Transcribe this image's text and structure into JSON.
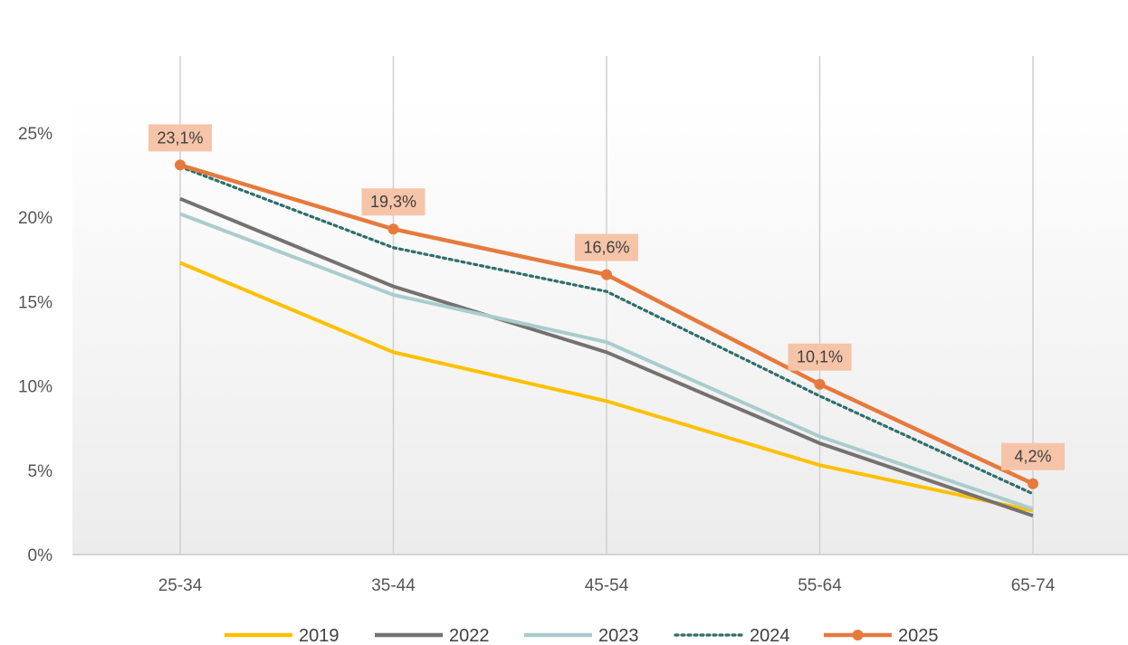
{
  "chart_data": {
    "type": "line",
    "title": "",
    "xlabel": "",
    "ylabel": "",
    "categories": [
      "25-34",
      "35-44",
      "45-54",
      "55-64",
      "65-74"
    ],
    "y_ticks": [
      "0%",
      "5%",
      "10%",
      "15%",
      "20%",
      "25%"
    ],
    "ylim": [
      0,
      25
    ],
    "grid": "vertical lines at categories",
    "legend_position": "bottom",
    "series": [
      {
        "name": "2019",
        "values": [
          17.3,
          12.0,
          9.1,
          5.3,
          2.6
        ],
        "color": "#FFC000",
        "style": "solid"
      },
      {
        "name": "2022",
        "values": [
          21.1,
          15.9,
          12.0,
          6.6,
          2.3
        ],
        "color": "#767171",
        "style": "solid"
      },
      {
        "name": "2023",
        "values": [
          20.2,
          15.4,
          12.6,
          7.0,
          2.7
        ],
        "color": "#A9CDCC",
        "style": "solid"
      },
      {
        "name": "2024",
        "values": [
          23.0,
          18.2,
          15.6,
          9.4,
          3.6
        ],
        "color": "#2E6E6B",
        "style": "dotted"
      },
      {
        "name": "2025",
        "values": [
          23.1,
          19.3,
          16.6,
          10.1,
          4.2
        ],
        "color": "#E67A3C",
        "style": "solid-markers"
      }
    ],
    "data_labels": [
      "23,1%",
      "19,3%",
      "16,6%",
      "10,1%",
      "4,2%"
    ],
    "data_label_series": "2025"
  }
}
